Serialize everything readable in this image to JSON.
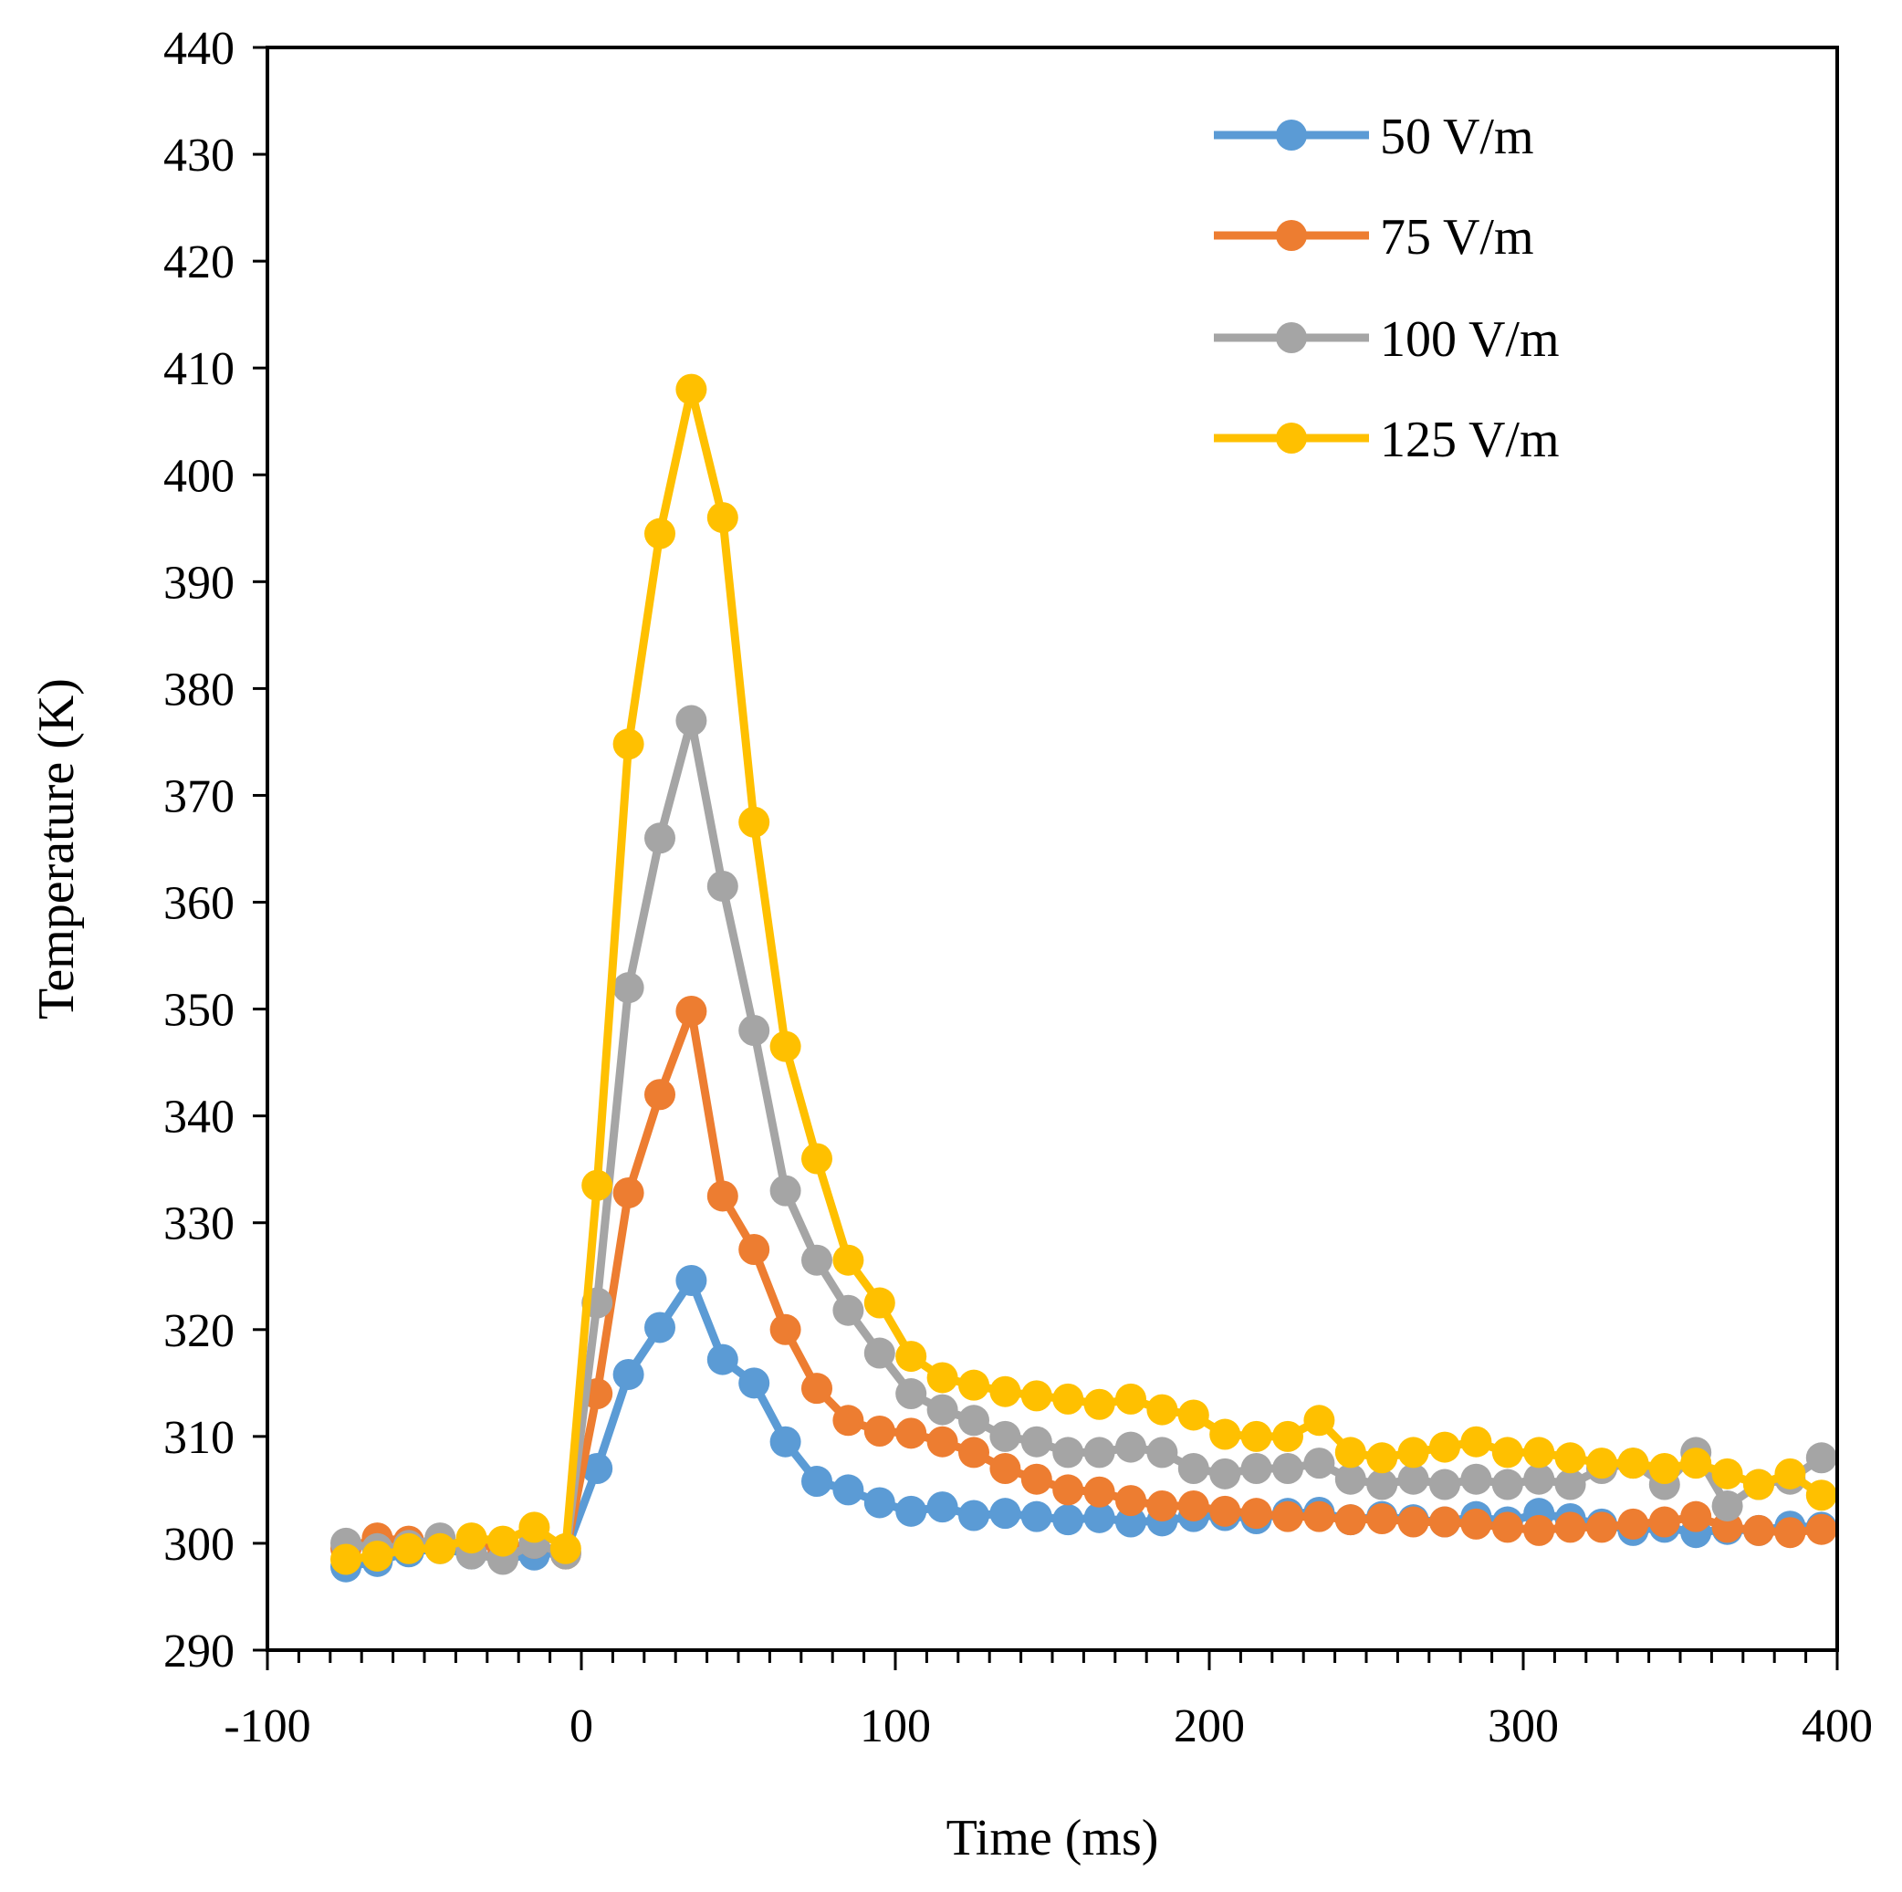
{
  "chart_data": {
    "type": "line",
    "title": "",
    "xlabel": "Time (ms)",
    "ylabel": "Temperature (K)",
    "xlim": [
      -100,
      400
    ],
    "ylim": [
      290,
      440
    ],
    "xticks": [
      "-100",
      "0",
      "100",
      "200",
      "300",
      "400"
    ],
    "yticks": [
      "290",
      "300",
      "310",
      "320",
      "330",
      "340",
      "350",
      "360",
      "370",
      "380",
      "390",
      "400",
      "410",
      "420",
      "430",
      "440"
    ],
    "grid": false,
    "legend_position": "top-right",
    "x": [
      -75,
      -65,
      -55,
      -45,
      -35,
      -25,
      -15,
      -5,
      5,
      15,
      25,
      35,
      45,
      55,
      65,
      75,
      85,
      95,
      105,
      115,
      125,
      135,
      145,
      155,
      165,
      175,
      185,
      195,
      205,
      215,
      225,
      235,
      245,
      255,
      265,
      275,
      285,
      295,
      305,
      315,
      325,
      335,
      345,
      355,
      365,
      375,
      385,
      395
    ],
    "series": [
      {
        "name": "50 V/m",
        "color": "#5B9BD5",
        "values": [
          297.8,
          298.3,
          299.2,
          299.5,
          299.0,
          298.6,
          298.9,
          299.2,
          307.0,
          315.8,
          320.2,
          324.6,
          317.2,
          315.0,
          309.5,
          305.8,
          305.0,
          303.8,
          303.0,
          303.4,
          302.6,
          302.8,
          302.5,
          302.2,
          302.4,
          302.0,
          302.1,
          302.5,
          302.6,
          302.3,
          302.8,
          302.9,
          302.2,
          302.5,
          302.2,
          302.0,
          302.5,
          302.0,
          302.8,
          302.3,
          301.8,
          301.2,
          301.5,
          301.0,
          301.3,
          301.2,
          301.6,
          301.5
        ]
      },
      {
        "name": "75 V/m",
        "color": "#ED7D31",
        "values": [
          299.5,
          300.5,
          300.2,
          300.0,
          300.0,
          299.5,
          300.0,
          299.0,
          314.0,
          332.8,
          342.0,
          349.8,
          332.5,
          327.5,
          320.0,
          314.5,
          311.5,
          310.5,
          310.3,
          309.5,
          308.5,
          307.0,
          306.0,
          305.0,
          304.8,
          304.0,
          303.5,
          303.5,
          303.0,
          302.8,
          302.5,
          302.5,
          302.2,
          302.3,
          302.0,
          302.0,
          301.8,
          301.5,
          301.2,
          301.5,
          301.5,
          301.8,
          302.0,
          302.5,
          301.5,
          301.2,
          301.0,
          301.3
        ]
      },
      {
        "name": "100 V/m",
        "color": "#A5A5A5",
        "values": [
          300.0,
          299.5,
          299.8,
          300.5,
          299.0,
          298.5,
          300.0,
          299.0,
          322.5,
          352.0,
          366.0,
          377.0,
          361.5,
          348.0,
          333.0,
          326.5,
          321.8,
          317.8,
          314.0,
          312.5,
          311.5,
          310.0,
          309.5,
          308.5,
          308.5,
          309.0,
          308.5,
          307.0,
          306.5,
          307.0,
          307.0,
          307.5,
          306.0,
          305.5,
          306.0,
          305.5,
          306.0,
          305.5,
          306.0,
          305.5,
          307.0,
          307.5,
          305.5,
          308.5,
          303.5,
          305.5,
          306.0,
          308.0
        ]
      },
      {
        "name": "125 V/m",
        "color": "#FFC000",
        "values": [
          298.5,
          298.8,
          299.5,
          299.5,
          300.5,
          300.2,
          301.5,
          299.5,
          333.5,
          374.8,
          394.5,
          408.0,
          396.0,
          367.5,
          346.5,
          336.0,
          326.5,
          322.5,
          317.5,
          315.5,
          314.8,
          314.2,
          313.8,
          313.5,
          313.0,
          313.5,
          312.5,
          312.0,
          310.2,
          310.0,
          310.0,
          311.5,
          308.5,
          308.0,
          308.5,
          309.0,
          309.5,
          308.5,
          308.5,
          308.0,
          307.5,
          307.5,
          307.0,
          307.5,
          306.5,
          305.5,
          306.5,
          304.5
        ]
      }
    ]
  }
}
